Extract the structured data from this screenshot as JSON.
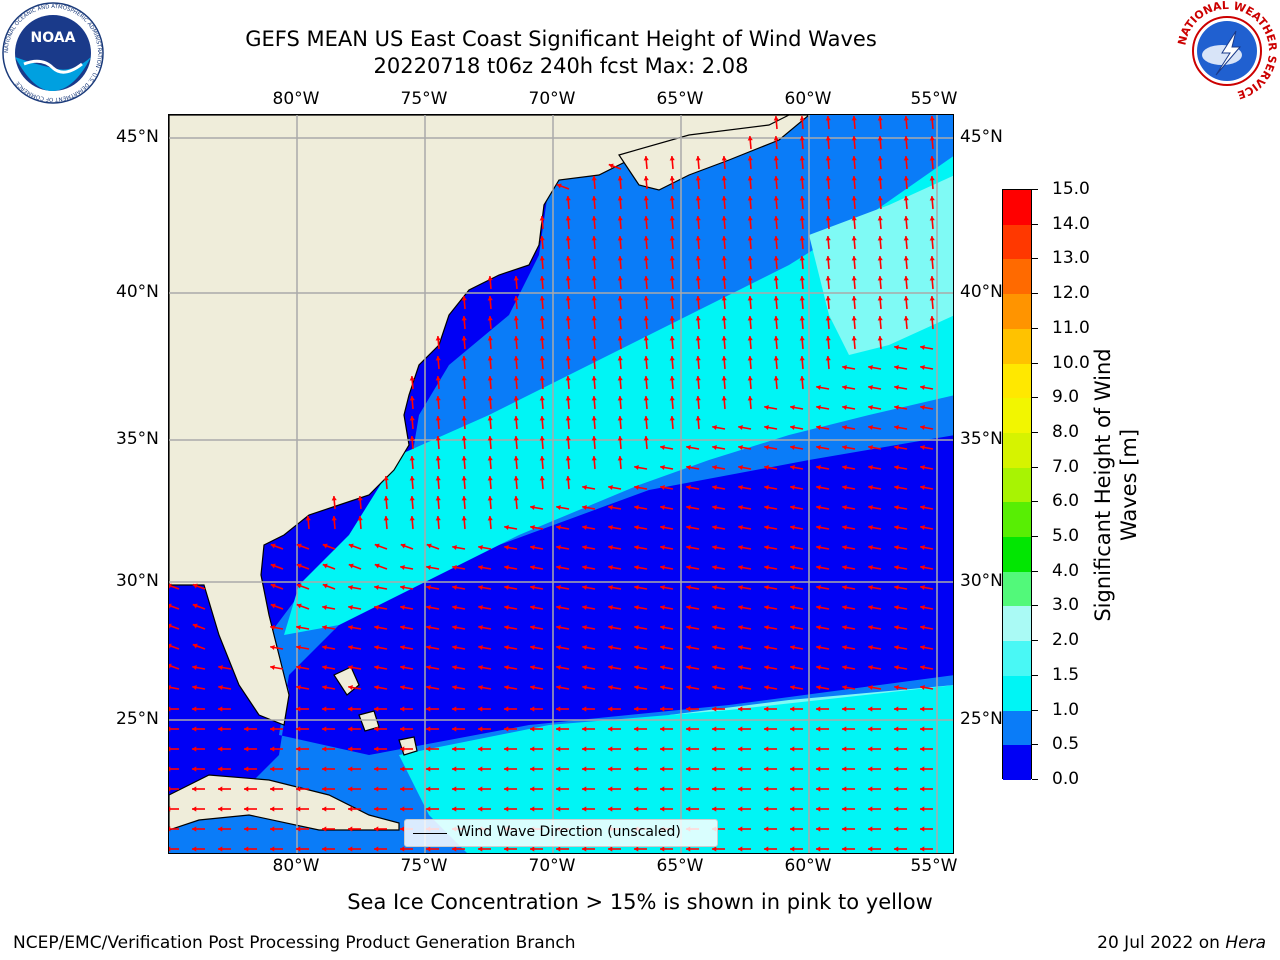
{
  "title": {
    "line1": "GEFS MEAN US East Coast Significant Height of Wind Waves",
    "line2": "20220718 t06z 240h fcst   Max: 2.08"
  },
  "map": {
    "longitude_labels": [
      "80°W",
      "75°W",
      "70°W",
      "65°W",
      "60°W",
      "55°W"
    ],
    "latitude_labels": [
      "45°N",
      "40°N",
      "35°N",
      "30°N",
      "25°N"
    ],
    "colors": {
      "land": "#efedda",
      "ocean_0_0p5": "#0000f5",
      "ocean_0p5_1": "#0a7cf8",
      "ocean_1_1p5": "#00f5f5",
      "ocean_1p5_2": "#7ffaf5",
      "arrows": "#ff0000",
      "gridlines": "#aaaaaa"
    },
    "legend_label": "Wind Wave Direction (unscaled)"
  },
  "colorbar": {
    "title": "Significant Height of Wind Waves [m]",
    "title_line1": "Significant Height of Wind",
    "title_line2": "Waves [m]",
    "ticks": [
      "0.0",
      "0.5",
      "1.0",
      "1.5",
      "2.0",
      "3.0",
      "4.0",
      "5.0",
      "6.0",
      "7.0",
      "8.0",
      "9.0",
      "10.0",
      "11.0",
      "12.0",
      "13.0",
      "14.0",
      "15.0"
    ],
    "colors": [
      "#0000f5",
      "#0a7cf8",
      "#00f5f5",
      "#49f8f5",
      "#aafaf5",
      "#52f97a",
      "#02e602",
      "#58ee04",
      "#a8f303",
      "#d6f300",
      "#f2f600",
      "#ffe800",
      "#ffc200",
      "#ff9400",
      "#ff6a00",
      "#ff3800",
      "#ff0000"
    ]
  },
  "subtitle": "Sea Ice Concentration > 15% is shown in pink to yellow",
  "footer": {
    "left": "NCEP/EMC/Verification Post Processing Product Generation Branch",
    "right_date": "20 Jul 2022 on",
    "right_machine": "Hera"
  },
  "logos": {
    "noaa": {
      "text": "NOAA",
      "ring_text": "NATIONAL OCEANIC AND ATMOSPHERIC ADMINISTRATION · U.S. DEPARTMENT OF COMMERCE"
    },
    "nws": {
      "ring_text": "NATIONAL WEATHER SERVICE"
    }
  }
}
